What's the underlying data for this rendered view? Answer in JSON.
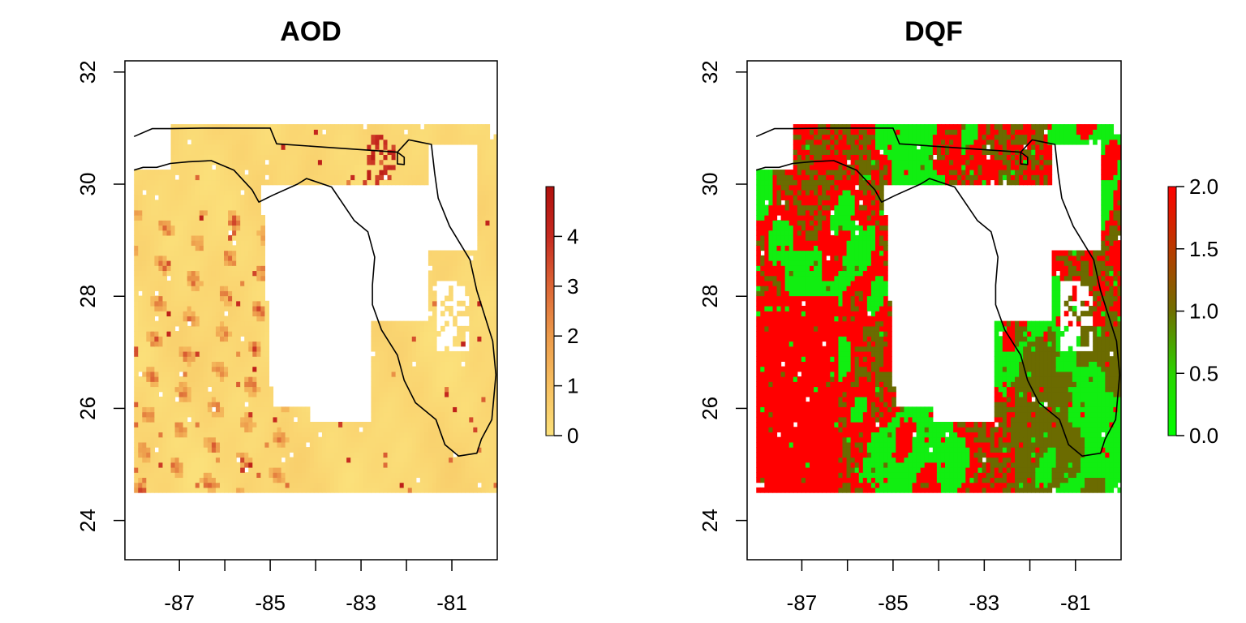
{
  "figure": {
    "panels": [
      {
        "title": "AOD",
        "x_ticks": [
          "-87",
          "-85",
          "-83",
          "-81"
        ],
        "y_ticks": [
          "24",
          "26",
          "28",
          "30",
          "32"
        ],
        "colorbar_ticks": [
          "0",
          "1",
          "2",
          "3",
          "4"
        ]
      },
      {
        "title": "DQF",
        "x_ticks": [
          "-87",
          "-85",
          "-83",
          "-81"
        ],
        "y_ticks": [
          "24",
          "26",
          "28",
          "30",
          "32"
        ],
        "colorbar_ticks": [
          "0.0",
          "0.5",
          "1.0",
          "1.5",
          "2.0"
        ]
      }
    ]
  },
  "chart_data": [
    {
      "type": "heatmap",
      "title": "AOD",
      "xlabel": "",
      "ylabel": "",
      "xlim": [
        -88.2,
        -80.0
      ],
      "ylim": [
        23.3,
        32.2
      ],
      "data_extent": {
        "lon": [
          -88.0,
          -80.0
        ],
        "lat": [
          24.5,
          31.0
        ]
      },
      "x_ticks": [
        -87,
        -85,
        -83,
        -81
      ],
      "x_minor_ticks": [
        -86,
        -84,
        -82
      ],
      "y_ticks": [
        24,
        26,
        28,
        30,
        32
      ],
      "colorbar": {
        "range": [
          0,
          5
        ],
        "ticks": [
          0,
          1,
          2,
          3,
          4
        ],
        "colors": [
          "#fbe07a",
          "#f7c060",
          "#ec9a4a",
          "#dc6535",
          "#c62a20",
          "#b0100d"
        ]
      },
      "missing_region": "white (no data) over peninsula west of the Florida coast and parts of the peninsula interior",
      "typical_value": 0.3,
      "max_value": 4.9
    },
    {
      "type": "heatmap",
      "title": "DQF",
      "xlabel": "",
      "ylabel": "",
      "xlim": [
        -88.2,
        -80.0
      ],
      "ylim": [
        23.3,
        32.2
      ],
      "data_extent": {
        "lon": [
          -88.0,
          -80.0
        ],
        "lat": [
          24.5,
          31.0
        ]
      },
      "x_ticks": [
        -87,
        -85,
        -83,
        -81
      ],
      "x_minor_ticks": [
        -86,
        -84,
        -82
      ],
      "y_ticks": [
        24,
        26,
        28,
        30,
        32
      ],
      "colorbar": {
        "range": [
          0,
          2
        ],
        "ticks": [
          0.0,
          0.5,
          1.0,
          1.5,
          2.0
        ],
        "colors": [
          "#00ff00",
          "#2ad400",
          "#6f6f00",
          "#b83a00",
          "#ff0000"
        ]
      },
      "categories": [
        0,
        1,
        2
      ],
      "category_colors": [
        "#11ee11",
        "#6b6b00",
        "#ff0000"
      ]
    }
  ]
}
